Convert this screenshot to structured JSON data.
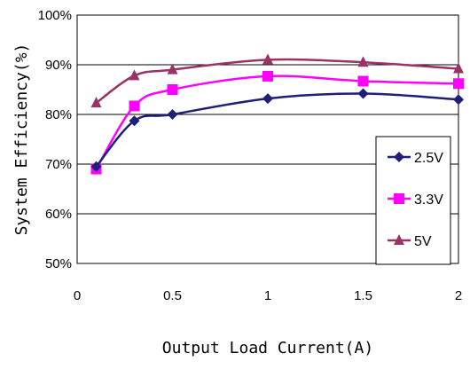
{
  "chart_data": {
    "type": "line",
    "title": "",
    "xlabel": "Output Load Current(A)",
    "ylabel": "System Efficiency(%)",
    "xlim": [
      0,
      2
    ],
    "ylim": [
      50,
      100
    ],
    "x_ticks": [
      "0",
      "0.5",
      "1",
      "1.5",
      "2"
    ],
    "y_ticks": [
      "50%",
      "60%",
      "70%",
      "80%",
      "90%",
      "100%"
    ],
    "y_tick_values": [
      50,
      60,
      70,
      80,
      90,
      100
    ],
    "x_tick_values": [
      0,
      0.5,
      1,
      1.5,
      2
    ],
    "grid": "horizontal",
    "legend_position": "bottom-right",
    "x": [
      0.1,
      0.3,
      0.5,
      1.0,
      1.5,
      2.0
    ],
    "series": [
      {
        "name": "2.5V",
        "values": [
          69.5,
          78.7,
          80.0,
          83.2,
          84.2,
          83.0
        ],
        "color": "#1f1f7a",
        "marker": "diamond"
      },
      {
        "name": "3.3V",
        "values": [
          69.0,
          81.7,
          85.0,
          87.7,
          86.7,
          86.2
        ],
        "color": "#ff00ff",
        "marker": "square"
      },
      {
        "name": "5V",
        "values": [
          82.3,
          87.8,
          89.0,
          91.0,
          90.5,
          89.2
        ],
        "color": "#993366",
        "marker": "triangle"
      }
    ]
  }
}
